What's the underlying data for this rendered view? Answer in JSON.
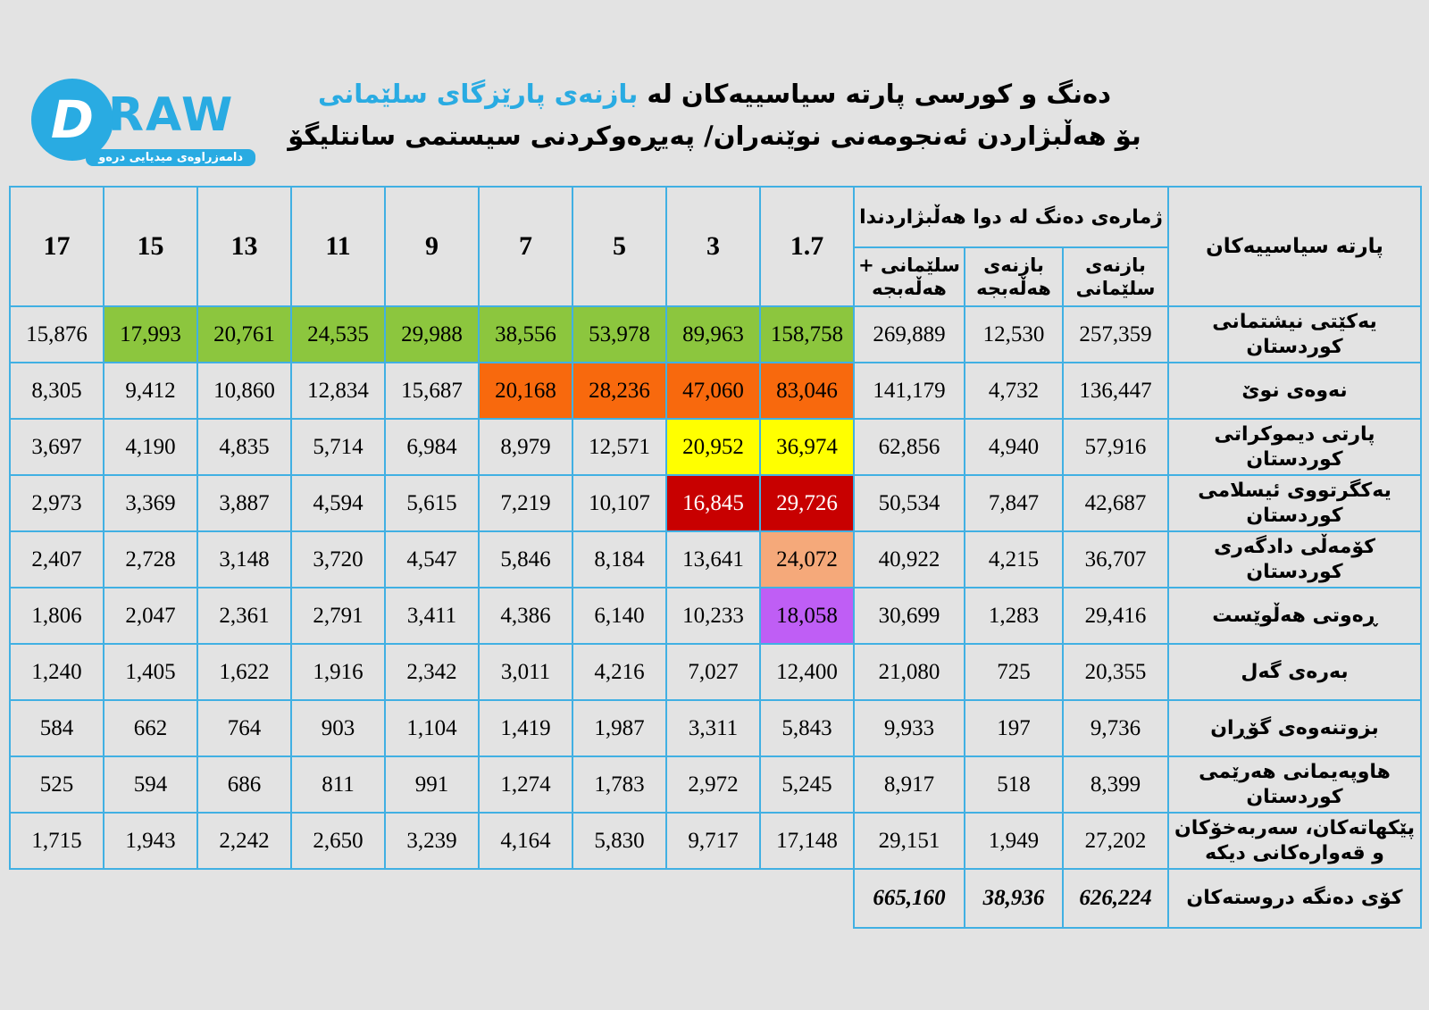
{
  "logo": {
    "letter": "D",
    "wordmark": "RAW",
    "tagline": "دامەزراوەی میدیایی درەو",
    "brand_color": "#29abe2"
  },
  "title": {
    "line1_black": "دەنگ و کورسی پارتە سیاسییەکان لە",
    "line1_blue": "بازنەی پارێزگای سلێمانی",
    "line2": "بۆ هەڵبژاردن ئەنجومەنی نوێنەران/ پەیڕەوکردنی سیستمی سانتلیگۆ",
    "accent_color": "#29abe2"
  },
  "table": {
    "border_color": "#41b0e3",
    "party_column": "پارتە سیاسییەکان",
    "votes_group": "ژمارەی دەنگ لە دوا هەڵبژاردندا",
    "sub_columns": [
      "بازنەی سلێمانی",
      "بازنەی هەڵەبجە",
      "سلێمانی + هەڵەبجە"
    ],
    "divisors": [
      "1.7",
      "3",
      "5",
      "7",
      "9",
      "11",
      "13",
      "15",
      "17"
    ],
    "highlight_colors": {
      "green": "#8cc63e",
      "orange": "#f8690d",
      "yellow": "#ffff00",
      "darkred": "#c80000",
      "salmon": "#f5a97a",
      "purple": "#bf5ef5"
    },
    "rows": [
      {
        "name": "یەکێتی نیشتمانی کوردستان",
        "totals": [
          "257,359",
          "12,530",
          "269,889"
        ],
        "divisors": [
          "158,758",
          "89,963",
          "53,978",
          "38,556",
          "29,988",
          "24,535",
          "20,761",
          "17,993",
          "15,876"
        ],
        "highlight_count": 8,
        "highlight_color": "green",
        "highlight_text": "#000000"
      },
      {
        "name": "نەوەی نوێ",
        "totals": [
          "136,447",
          "4,732",
          "141,179"
        ],
        "divisors": [
          "83,046",
          "47,060",
          "28,236",
          "20,168",
          "15,687",
          "12,834",
          "10,860",
          "9,412",
          "8,305"
        ],
        "highlight_count": 4,
        "highlight_color": "orange",
        "highlight_text": "#000000"
      },
      {
        "name": "پارتی دیموکراتی کوردستان",
        "totals": [
          "57,916",
          "4,940",
          "62,856"
        ],
        "divisors": [
          "36,974",
          "20,952",
          "12,571",
          "8,979",
          "6,984",
          "5,714",
          "4,835",
          "4,190",
          "3,697"
        ],
        "highlight_count": 2,
        "highlight_color": "yellow",
        "highlight_text": "#000000"
      },
      {
        "name": "یەکگرتووی ئیسلامی کوردستان",
        "totals": [
          "42,687",
          "7,847",
          "50,534"
        ],
        "divisors": [
          "29,726",
          "16,845",
          "10,107",
          "7,219",
          "5,615",
          "4,594",
          "3,887",
          "3,369",
          "2,973"
        ],
        "highlight_count": 2,
        "highlight_color": "darkred",
        "highlight_text": "#ffffff"
      },
      {
        "name": "کۆمەڵی دادگەری کوردستان",
        "totals": [
          "36,707",
          "4,215",
          "40,922"
        ],
        "divisors": [
          "24,072",
          "13,641",
          "8,184",
          "5,846",
          "4,547",
          "3,720",
          "3,148",
          "2,728",
          "2,407"
        ],
        "highlight_count": 1,
        "highlight_color": "salmon",
        "highlight_text": "#000000"
      },
      {
        "name": "ڕەوتی هەڵوێست",
        "totals": [
          "29,416",
          "1,283",
          "30,699"
        ],
        "divisors": [
          "18,058",
          "10,233",
          "6,140",
          "4,386",
          "3,411",
          "2,791",
          "2,361",
          "2,047",
          "1,806"
        ],
        "highlight_count": 1,
        "highlight_color": "purple",
        "highlight_text": "#000000"
      },
      {
        "name": "بەرەی گەل",
        "totals": [
          "20,355",
          "725",
          "21,080"
        ],
        "divisors": [
          "12,400",
          "7,027",
          "4,216",
          "3,011",
          "2,342",
          "1,916",
          "1,622",
          "1,405",
          "1,240"
        ],
        "highlight_count": 0
      },
      {
        "name": "بزوتنەوەی گۆڕان",
        "totals": [
          "9,736",
          "197",
          "9,933"
        ],
        "divisors": [
          "5,843",
          "3,311",
          "1,987",
          "1,419",
          "1,104",
          "903",
          "764",
          "662",
          "584"
        ],
        "highlight_count": 0
      },
      {
        "name": "هاوپەیمانی هەرێمی کوردستان",
        "totals": [
          "8,399",
          "518",
          "8,917"
        ],
        "divisors": [
          "5,245",
          "2,972",
          "1,783",
          "1,274",
          "991",
          "811",
          "686",
          "594",
          "525"
        ],
        "highlight_count": 0
      },
      {
        "name": "پێکهاتەکان، سەربەخۆکان و قەوارەکانی دیکە",
        "totals": [
          "27,202",
          "1,949",
          "29,151"
        ],
        "divisors": [
          "17,148",
          "9,717",
          "5,830",
          "4,164",
          "3,239",
          "2,650",
          "2,242",
          "1,943",
          "1,715"
        ],
        "highlight_count": 0
      }
    ],
    "total_row": {
      "name": "کۆی دەنگە دروستەکان",
      "totals": [
        "626,224",
        "38,936",
        "665,160"
      ]
    }
  },
  "chart_data": {
    "type": "table",
    "title": "دەنگ و کورسی پارتە سیاسییەکان لە بازنەی پارێزگای سلێمانی بۆ هەڵبژاردن ئەنجومەنی نوێنەران/ پەیڕەوکردنی سیستمی سانتلیگۆ",
    "column_groups": {
      "vote_totals_label": "ژمارەی دەنگ لە دوا هەڵبژاردندا",
      "vote_total_columns": [
        "بازنەی سلێمانی",
        "بازنەی هەڵەبجە",
        "سلێمانی + هەڵەبجە"
      ],
      "sainte_lague_divisors": [
        1.7,
        3,
        5,
        7,
        9,
        11,
        13,
        15,
        17
      ]
    },
    "rows": [
      {
        "party": "یەکێتی نیشتمانی کوردستان",
        "sulaymaniyah": 257359,
        "halabja": 12530,
        "combined": 269889,
        "quotients": [
          158758,
          89963,
          53978,
          38556,
          29988,
          24535,
          20761,
          17993,
          15876
        ],
        "seats_highlighted": 8
      },
      {
        "party": "نەوەی نوێ",
        "sulaymaniyah": 136447,
        "halabja": 4732,
        "combined": 141179,
        "quotients": [
          83046,
          47060,
          28236,
          20168,
          15687,
          12834,
          10860,
          9412,
          8305
        ],
        "seats_highlighted": 4
      },
      {
        "party": "پارتی دیموکراتی کوردستان",
        "sulaymaniyah": 57916,
        "halabja": 4940,
        "combined": 62856,
        "quotients": [
          36974,
          20952,
          12571,
          8979,
          6984,
          5714,
          4835,
          4190,
          3697
        ],
        "seats_highlighted": 2
      },
      {
        "party": "یەکگرتووی ئیسلامی کوردستان",
        "sulaymaniyah": 42687,
        "halabja": 7847,
        "combined": 50534,
        "quotients": [
          29726,
          16845,
          10107,
          7219,
          5615,
          4594,
          3887,
          3369,
          2973
        ],
        "seats_highlighted": 2
      },
      {
        "party": "کۆمەڵی دادگەری کوردستان",
        "sulaymaniyah": 36707,
        "halabja": 4215,
        "combined": 40922,
        "quotients": [
          24072,
          13641,
          8184,
          5846,
          4547,
          3720,
          3148,
          2728,
          2407
        ],
        "seats_highlighted": 1
      },
      {
        "party": "ڕەوتی هەڵوێست",
        "sulaymaniyah": 29416,
        "halabja": 1283,
        "combined": 30699,
        "quotients": [
          18058,
          10233,
          6140,
          4386,
          3411,
          2791,
          2361,
          2047,
          1806
        ],
        "seats_highlighted": 1
      },
      {
        "party": "بەرەی گەل",
        "sulaymaniyah": 20355,
        "halabja": 725,
        "combined": 21080,
        "quotients": [
          12400,
          7027,
          4216,
          3011,
          2342,
          1916,
          1622,
          1405,
          1240
        ],
        "seats_highlighted": 0
      },
      {
        "party": "بزوتنەوەی گۆڕان",
        "sulaymaniyah": 9736,
        "halabja": 197,
        "combined": 9933,
        "quotients": [
          5843,
          3311,
          1987,
          1419,
          1104,
          903,
          764,
          662,
          584
        ],
        "seats_highlighted": 0
      },
      {
        "party": "هاوپەیمانی هەرێمی کوردستان",
        "sulaymaniyah": 8399,
        "halabja": 518,
        "combined": 8917,
        "quotients": [
          5245,
          2972,
          1783,
          1274,
          991,
          811,
          686,
          594,
          525
        ],
        "seats_highlighted": 0
      },
      {
        "party": "پێکهاتەکان، سەربەخۆکان و قەوارەکانی دیکە",
        "sulaymaniyah": 27202,
        "halabja": 1949,
        "combined": 29151,
        "quotients": [
          17148,
          9717,
          5830,
          4164,
          3239,
          2650,
          2242,
          1943,
          1715
        ],
        "seats_highlighted": 0
      }
    ],
    "totals_row": {
      "label": "کۆی دەنگە دروستەکان",
      "sulaymaniyah": 626224,
      "halabja": 38936,
      "combined": 665160
    }
  }
}
